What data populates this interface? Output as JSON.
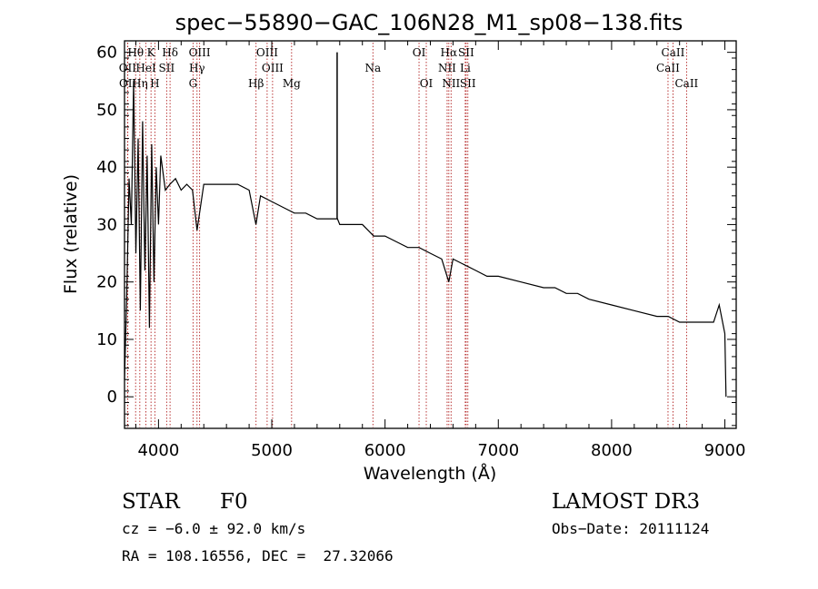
{
  "chart_data": {
    "type": "line",
    "title": "spec−55890−GAC_106N28_M1_sp08−138.fits",
    "xlabel": "Wavelength (Å)",
    "ylabel": "Flux (relative)",
    "xlim": [
      3700,
      9100
    ],
    "ylim": [
      -5.5,
      62
    ],
    "xticks": [
      4000,
      5000,
      6000,
      7000,
      8000,
      9000
    ],
    "yticks": [
      0,
      10,
      20,
      30,
      40,
      50,
      60
    ],
    "grid": false,
    "series": [
      {
        "name": "spectrum",
        "points": [
          [
            3700,
            3
          ],
          [
            3720,
            18
          ],
          [
            3740,
            38
          ],
          [
            3760,
            30
          ],
          [
            3780,
            55
          ],
          [
            3800,
            25
          ],
          [
            3820,
            45
          ],
          [
            3840,
            15
          ],
          [
            3860,
            48
          ],
          [
            3880,
            22
          ],
          [
            3900,
            42
          ],
          [
            3920,
            12
          ],
          [
            3940,
            44
          ],
          [
            3960,
            20
          ],
          [
            3980,
            40
          ],
          [
            4000,
            30
          ],
          [
            4020,
            42
          ],
          [
            4060,
            36
          ],
          [
            4100,
            37
          ],
          [
            4150,
            38
          ],
          [
            4200,
            36
          ],
          [
            4250,
            37
          ],
          [
            4300,
            36
          ],
          [
            4340,
            29
          ],
          [
            4400,
            37
          ],
          [
            4500,
            37
          ],
          [
            4600,
            37
          ],
          [
            4700,
            37
          ],
          [
            4800,
            36
          ],
          [
            4860,
            30
          ],
          [
            4900,
            35
          ],
          [
            5000,
            34
          ],
          [
            5100,
            33
          ],
          [
            5200,
            32
          ],
          [
            5300,
            32
          ],
          [
            5400,
            31
          ],
          [
            5500,
            31
          ],
          [
            5580,
            31
          ],
          [
            5600,
            30
          ],
          [
            5700,
            30
          ],
          [
            5800,
            30
          ],
          [
            5900,
            28
          ],
          [
            6000,
            28
          ],
          [
            6100,
            27
          ],
          [
            6200,
            26
          ],
          [
            6300,
            26
          ],
          [
            6400,
            25
          ],
          [
            6500,
            24
          ],
          [
            6563,
            20
          ],
          [
            6600,
            24
          ],
          [
            6700,
            23
          ],
          [
            6800,
            22
          ],
          [
            6900,
            21
          ],
          [
            7000,
            21
          ],
          [
            7200,
            20
          ],
          [
            7400,
            19
          ],
          [
            7500,
            19
          ],
          [
            7600,
            18
          ],
          [
            7700,
            18
          ],
          [
            7800,
            17
          ],
          [
            8000,
            16
          ],
          [
            8200,
            15
          ],
          [
            8400,
            14
          ],
          [
            8500,
            14
          ],
          [
            8600,
            13
          ],
          [
            8700,
            13
          ],
          [
            8800,
            13
          ],
          [
            8900,
            13
          ],
          [
            8950,
            16
          ],
          [
            9000,
            11
          ],
          [
            9010,
            0
          ]
        ],
        "spike": {
          "x": 5577,
          "y_from": 31,
          "y_to": 60
        }
      }
    ],
    "spectral_lines": [
      {
        "label": "Hθ",
        "x": 3798,
        "row": 1
      },
      {
        "label": "K",
        "x": 3934,
        "row": 1
      },
      {
        "label": "Hδ",
        "x": 4102,
        "row": 1
      },
      {
        "label": "OIII",
        "x": 4363,
        "row": 1
      },
      {
        "label": "OIII",
        "x": 4959,
        "row": 1
      },
      {
        "label": "OI",
        "x": 6300,
        "row": 1
      },
      {
        "label": "Hα",
        "x": 6563,
        "row": 1
      },
      {
        "label": "SII",
        "x": 6716,
        "row": 1
      },
      {
        "label": "CaII",
        "x": 8542,
        "row": 1
      },
      {
        "label": "OII",
        "x": 3727,
        "row": 2
      },
      {
        "label": "HeI",
        "x": 3889,
        "row": 2
      },
      {
        "label": "SII",
        "x": 4072,
        "row": 2
      },
      {
        "label": "Hγ",
        "x": 4340,
        "row": 2
      },
      {
        "label": "OIII",
        "x": 5007,
        "row": 2
      },
      {
        "label": "Na",
        "x": 5893,
        "row": 2
      },
      {
        "label": "NII",
        "x": 6548,
        "row": 2
      },
      {
        "label": "Li",
        "x": 6708,
        "row": 2
      },
      {
        "label": "CaII",
        "x": 8498,
        "row": 2
      },
      {
        "label": "OII",
        "x": 3729,
        "row": 3
      },
      {
        "label": "Hη",
        "x": 3835,
        "row": 3
      },
      {
        "label": "H",
        "x": 3968,
        "row": 3
      },
      {
        "label": "G",
        "x": 4305,
        "row": 3
      },
      {
        "label": "Hβ",
        "x": 4861,
        "row": 3
      },
      {
        "label": "Mg",
        "x": 5175,
        "row": 3
      },
      {
        "label": "OI",
        "x": 6364,
        "row": 3
      },
      {
        "label": "NII",
        "x": 6583,
        "row": 3
      },
      {
        "label": "SII",
        "x": 6731,
        "row": 3
      },
      {
        "label": "CaII",
        "x": 8662,
        "row": 3
      }
    ]
  },
  "info": {
    "object_class": "STAR",
    "subclass": "F0",
    "survey": "LAMOST DR3",
    "redshift": "cz = −6.0 ± 92.0 km/s",
    "obs_date": "Obs−Date: 20111124",
    "coords": "RA = 108.16556, DEC =  27.32066"
  }
}
